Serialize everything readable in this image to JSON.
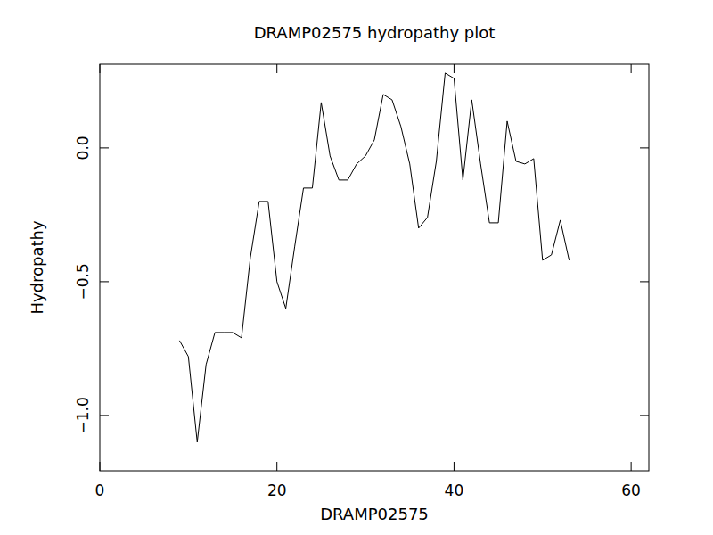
{
  "chart_data": {
    "type": "line",
    "title": "DRAMP02575 hydropathy plot",
    "x_label": "DRAMP02575",
    "y_label": "Hydropathy",
    "x": [
      9,
      10,
      11,
      12,
      13,
      14,
      15,
      16,
      17,
      18,
      19,
      20,
      21,
      22,
      23,
      24,
      25,
      26,
      27,
      28,
      29,
      30,
      31,
      32,
      33,
      34,
      35,
      36,
      37,
      38,
      39,
      40,
      41,
      42,
      43,
      44,
      45,
      46,
      47,
      48,
      49,
      50,
      51,
      52,
      53
    ],
    "values": [
      -0.72,
      -0.78,
      -1.1,
      -0.81,
      -0.69,
      -0.69,
      -0.69,
      -0.71,
      -0.41,
      -0.2,
      -0.2,
      -0.5,
      -0.6,
      -0.37,
      -0.15,
      -0.15,
      0.17,
      -0.03,
      -0.12,
      -0.12,
      -0.06,
      -0.03,
      0.03,
      0.2,
      0.18,
      0.08,
      -0.06,
      -0.3,
      -0.26,
      -0.05,
      0.28,
      0.26,
      -0.12,
      0.18,
      -0.06,
      -0.28,
      -0.28,
      0.1,
      -0.05,
      -0.06,
      -0.04,
      -0.42,
      -0.4,
      -0.27,
      -0.42
    ],
    "color": "#000000",
    "xlim": [
      0,
      62
    ],
    "ylim": [
      -1.207,
      0.313
    ],
    "xticks": [
      0,
      20,
      40,
      60
    ],
    "yticks": [
      {
        "value": -1.0,
        "label": "−1.0"
      },
      {
        "value": -0.5,
        "label": "−0.5"
      },
      {
        "value": 0.0,
        "label": "0.0"
      }
    ],
    "grid": false
  }
}
